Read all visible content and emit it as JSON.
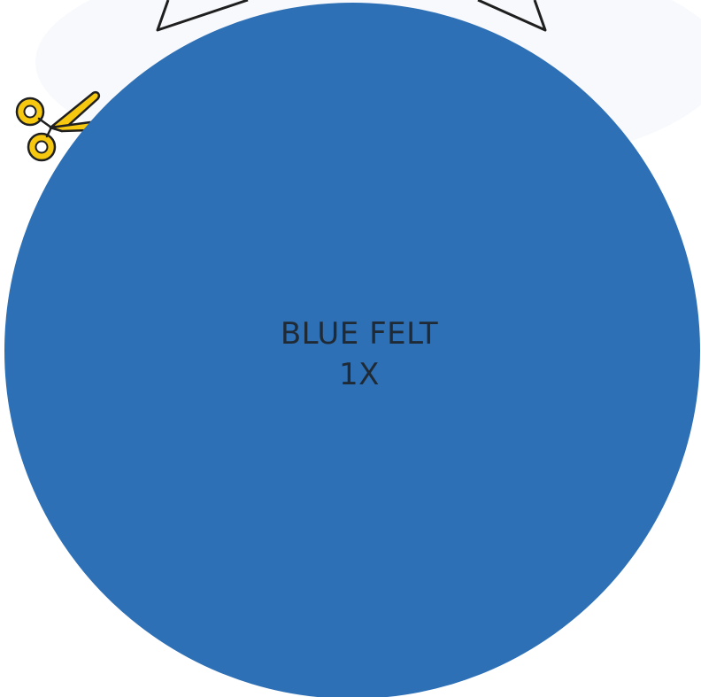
{
  "template": {
    "material_name": "BLUE FELT",
    "quantity": "1X",
    "circle_color": "#2e70b6",
    "text_color": "#1f2a35",
    "icons": [
      "scissors-icon",
      "star-outline"
    ],
    "scissors_color": "#f6c80f"
  }
}
